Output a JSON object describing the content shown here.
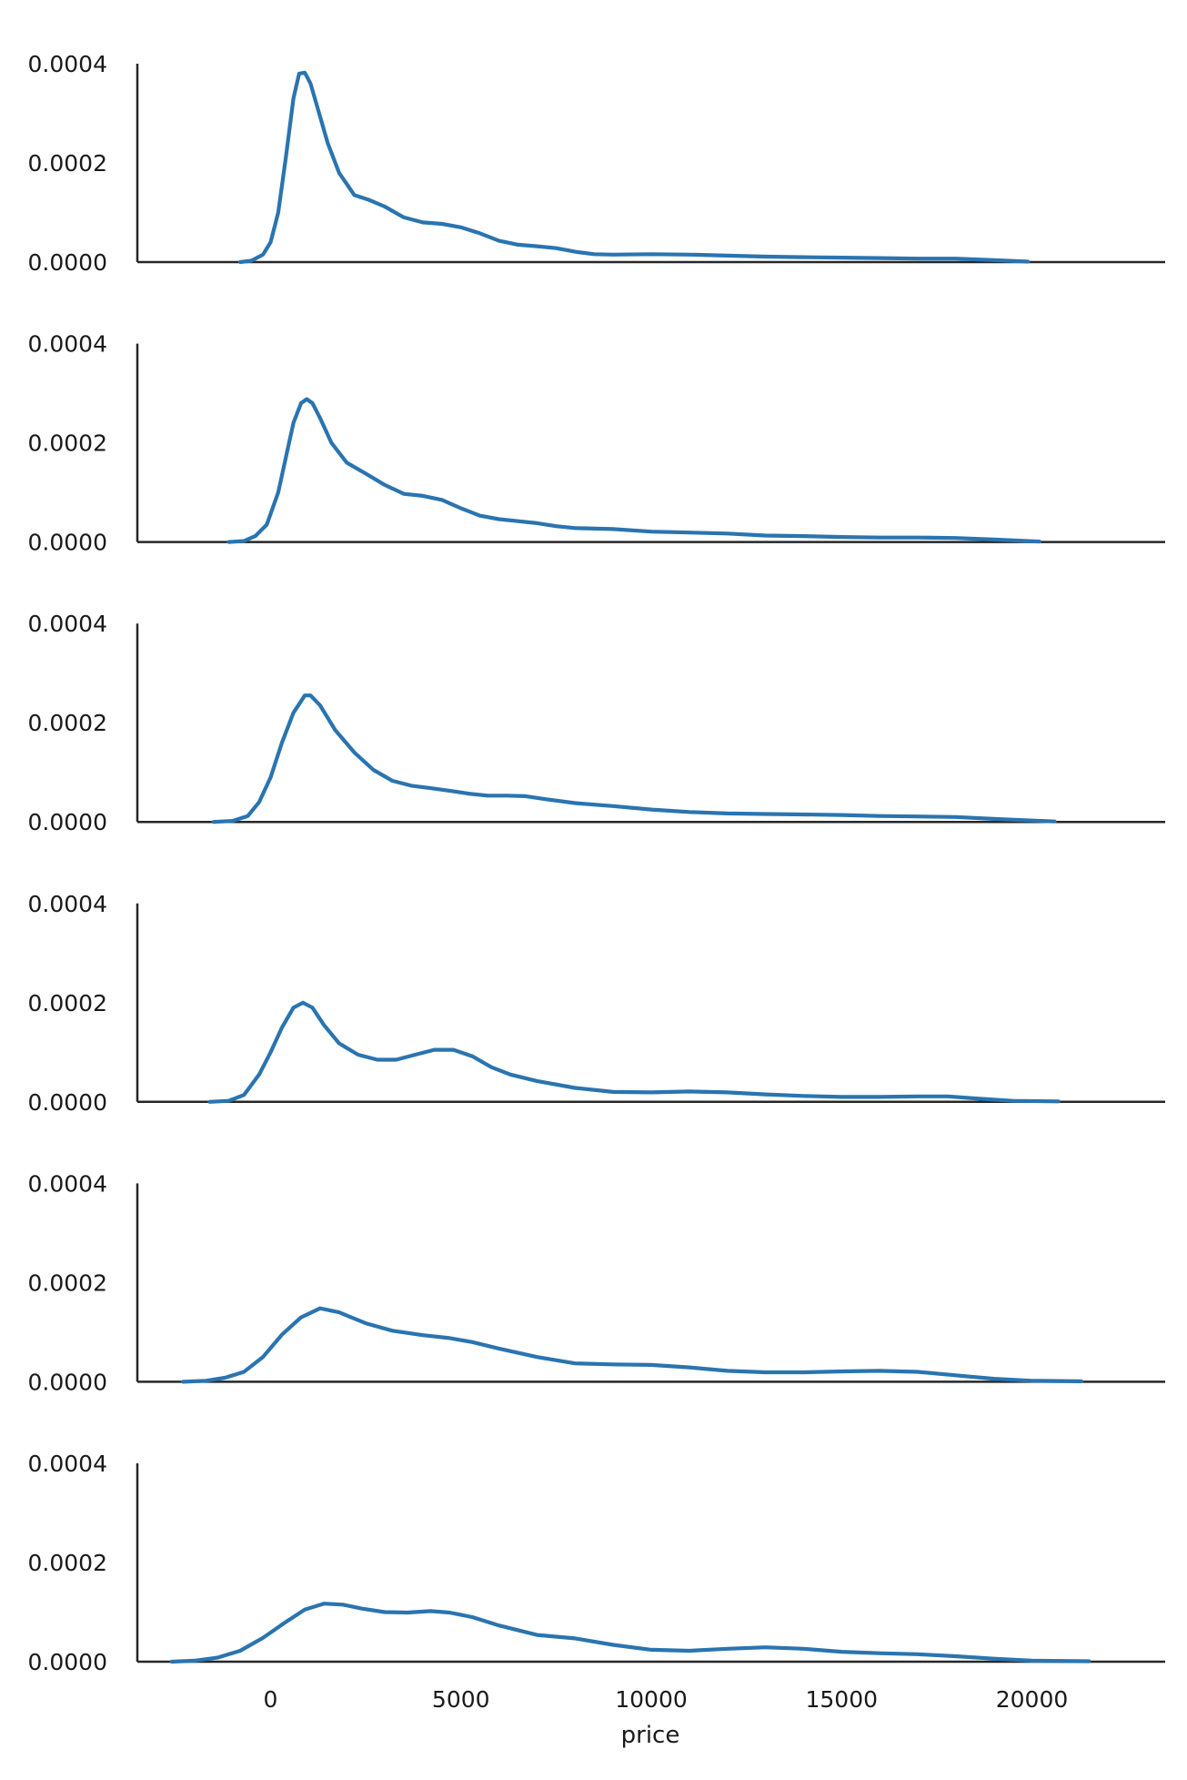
{
  "chart_data": {
    "type": "line",
    "xlabel": "price",
    "ylabel": "",
    "xlim": [
      -3500,
      23500
    ],
    "ylim": [
      0,
      0.0004
    ],
    "x_ticks": [
      0,
      5000,
      10000,
      15000,
      20000
    ],
    "x_tick_labels": [
      "0",
      "5000",
      "10000",
      "15000",
      "20000"
    ],
    "y_ticks": [
      0,
      0.0002,
      0.0004
    ],
    "y_tick_labels": [
      "0.0000",
      "0.0002",
      "0.0004"
    ],
    "grid": false,
    "line_color": "#2a74b0",
    "panels": [
      {
        "x": [
          -800,
          -500,
          -200,
          0,
          200,
          400,
          600,
          750,
          900,
          1050,
          1200,
          1500,
          1800,
          2200,
          2600,
          3000,
          3500,
          4000,
          4500,
          5000,
          5500,
          6000,
          6500,
          7000,
          7500,
          8000,
          8500,
          9000,
          10000,
          11000,
          12000,
          13000,
          14000,
          15000,
          16000,
          17000,
          18000,
          19000,
          19900
        ],
        "y": [
          0,
          3e-06,
          1.5e-05,
          4e-05,
          0.0001,
          0.00021,
          0.00033,
          0.00038,
          0.000382,
          0.00036,
          0.00032,
          0.00024,
          0.00018,
          0.000135,
          0.000125,
          0.000112,
          9e-05,
          8e-05,
          7.7e-05,
          7e-05,
          5.8e-05,
          4.3e-05,
          3.5e-05,
          3.2e-05,
          2.8e-05,
          2.1e-05,
          1.6e-05,
          1.5e-05,
          1.6e-05,
          1.5e-05,
          1.3e-05,
          1.1e-05,
          1e-05,
          9e-06,
          8e-06,
          7e-06,
          7e-06,
          4e-06,
          1e-06
        ]
      },
      {
        "x": [
          -1100,
          -700,
          -400,
          -100,
          200,
          400,
          600,
          800,
          950,
          1100,
          1300,
          1600,
          2000,
          2500,
          3000,
          3500,
          4000,
          4500,
          5000,
          5500,
          6000,
          6500,
          7000,
          7500,
          8000,
          9000,
          10000,
          11000,
          12000,
          13000,
          14000,
          15000,
          16000,
          17000,
          18000,
          19000,
          20200
        ],
        "y": [
          0,
          2e-06,
          1.2e-05,
          3.5e-05,
          0.0001,
          0.00017,
          0.00024,
          0.00028,
          0.000288,
          0.00028,
          0.00025,
          0.0002,
          0.00016,
          0.000138,
          0.000115,
          9.7e-05,
          9.3e-05,
          8.5e-05,
          6.8e-05,
          5.3e-05,
          4.6e-05,
          4.2e-05,
          3.8e-05,
          3.2e-05,
          2.8e-05,
          2.6e-05,
          2.1e-05,
          1.9e-05,
          1.7e-05,
          1.3e-05,
          1.2e-05,
          1e-05,
          9e-06,
          9e-06,
          8e-06,
          5e-06,
          1e-06
        ]
      },
      {
        "x": [
          -1500,
          -1000,
          -600,
          -300,
          0,
          300,
          600,
          900,
          1050,
          1300,
          1700,
          2200,
          2700,
          3200,
          3700,
          4200,
          4700,
          5200,
          5700,
          6200,
          6700,
          7200,
          8000,
          9000,
          10000,
          11000,
          12000,
          13000,
          14000,
          15000,
          16000,
          17000,
          18000,
          19000,
          20600
        ],
        "y": [
          0,
          2e-06,
          1.2e-05,
          4e-05,
          9e-05,
          0.00016,
          0.00022,
          0.000255,
          0.000255,
          0.000235,
          0.000185,
          0.00014,
          0.000105,
          8.3e-05,
          7.3e-05,
          6.8e-05,
          6.3e-05,
          5.7e-05,
          5.3e-05,
          5.3e-05,
          5.2e-05,
          4.6e-05,
          3.8e-05,
          3.2e-05,
          2.5e-05,
          2e-05,
          1.7e-05,
          1.6e-05,
          1.5e-05,
          1.4e-05,
          1.2e-05,
          1.1e-05,
          1e-05,
          6e-06,
          1e-06
        ]
      },
      {
        "x": [
          -1600,
          -1100,
          -700,
          -300,
          0,
          300,
          600,
          850,
          1100,
          1400,
          1800,
          2300,
          2800,
          3300,
          3800,
          4300,
          4800,
          5300,
          5800,
          6300,
          7000,
          8000,
          9000,
          10000,
          11000,
          12000,
          13000,
          14000,
          15000,
          16000,
          17000,
          17800,
          18500,
          19500,
          20700
        ],
        "y": [
          0,
          2e-06,
          1.4e-05,
          5.5e-05,
          0.0001,
          0.00015,
          0.00019,
          0.0002,
          0.00019,
          0.000155,
          0.000118,
          9.5e-05,
          8.5e-05,
          8.5e-05,
          9.5e-05,
          0.000105,
          0.000105,
          9.2e-05,
          7e-05,
          5.5e-05,
          4.2e-05,
          2.8e-05,
          2e-05,
          1.9e-05,
          2.1e-05,
          1.9e-05,
          1.5e-05,
          1.2e-05,
          1e-05,
          1e-05,
          1.1e-05,
          1.1e-05,
          7e-06,
          2e-06,
          1e-06
        ]
      },
      {
        "x": [
          -2300,
          -1700,
          -1200,
          -700,
          -200,
          300,
          800,
          1300,
          1800,
          2500,
          3200,
          4000,
          4700,
          5300,
          6000,
          7000,
          8000,
          9000,
          10000,
          11000,
          12000,
          13000,
          14000,
          15000,
          16000,
          17000,
          18000,
          19000,
          20000,
          21300
        ],
        "y": [
          0,
          2e-06,
          8e-06,
          2e-05,
          5e-05,
          9.5e-05,
          0.00013,
          0.000148,
          0.00014,
          0.000118,
          0.000103,
          9.4e-05,
          8.8e-05,
          8e-05,
          6.7e-05,
          5e-05,
          3.7e-05,
          3.5e-05,
          3.4e-05,
          2.9e-05,
          2.2e-05,
          1.9e-05,
          1.9e-05,
          2.1e-05,
          2.2e-05,
          2e-05,
          1.3e-05,
          6e-06,
          2e-06,
          1e-06
        ]
      },
      {
        "x": [
          -2600,
          -2000,
          -1400,
          -800,
          -200,
          400,
          900,
          1400,
          1900,
          2400,
          3000,
          3600,
          4200,
          4700,
          5300,
          6000,
          7000,
          8000,
          9000,
          10000,
          11000,
          12000,
          13000,
          14000,
          15000,
          16000,
          17000,
          18000,
          19000,
          20000,
          21500
        ],
        "y": [
          0,
          2e-06,
          8e-06,
          2.2e-05,
          4.8e-05,
          8e-05,
          0.000105,
          0.000117,
          0.000115,
          0.000107,
          0.0001,
          9.9e-05,
          0.000102,
          9.9e-05,
          9e-05,
          7.3e-05,
          5.4e-05,
          4.7e-05,
          3.4e-05,
          2.4e-05,
          2.2e-05,
          2.6e-05,
          2.9e-05,
          2.6e-05,
          2e-05,
          1.7e-05,
          1.5e-05,
          1.1e-05,
          6e-06,
          2e-06,
          1e-06
        ]
      }
    ]
  }
}
